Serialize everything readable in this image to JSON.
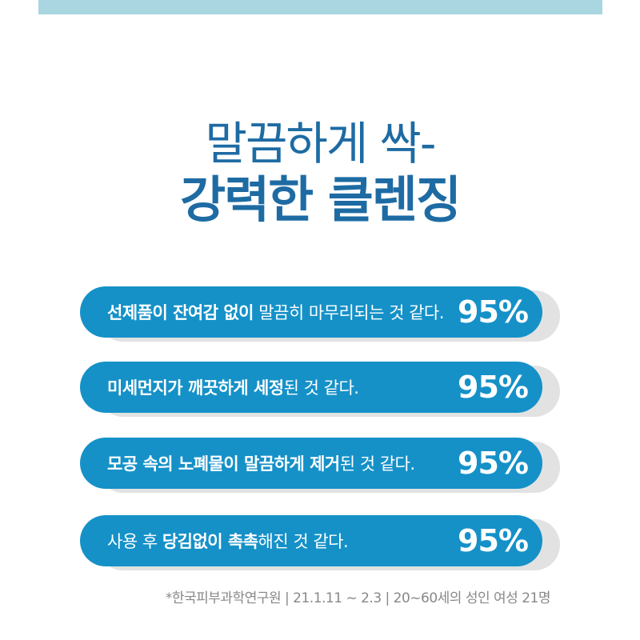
{
  "page": {
    "background_color": "#ffffff",
    "top_band_color": "#a9d6e0"
  },
  "title": {
    "line1": "말끔하게 싹-",
    "line2": "강력한 클렌징",
    "color": "#1e6ba3"
  },
  "survey": {
    "bar_color": "#1591c8",
    "shadow_color": "#e2e2e2",
    "text_color": "#ffffff",
    "items": [
      {
        "prefix": "",
        "bold": "선제품이 잔여감 없이",
        "rest": " 말끔히 마무리되는 것 같다.",
        "value": "95%"
      },
      {
        "prefix": "",
        "bold": "미세먼지가 깨끗하게 세정",
        "rest": "된 것 같다.",
        "value": "95%"
      },
      {
        "prefix": "",
        "bold": "모공 속의 노폐물이 말끔하게 제거",
        "rest": "된 것 같다.",
        "value": "95%"
      },
      {
        "prefix": "사용 후 ",
        "bold": "당김없이 촉촉",
        "rest": "해진 것 같다.",
        "value": "95%"
      }
    ]
  },
  "footnote": {
    "text": "*한국피부과학연구원 | 21.1.11 ~ 2.3 | 20~60세의 성인 여성 21명",
    "color": "#888888"
  },
  "chart_data": {
    "type": "bar",
    "orientation": "horizontal",
    "title": "말끔하게 싹- 강력한 클렌징",
    "categories": [
      "선제품이 잔여감 없이 말끔히 마무리되는 것 같다.",
      "미세먼지가 깨끗하게 세정된 것 같다.",
      "모공 속의 노폐물이 말끔하게 제거된 것 같다.",
      "사용 후 당김없이 촉촉해진 것 같다."
    ],
    "values": [
      95,
      95,
      95,
      95
    ],
    "unit": "%",
    "xlabel": "",
    "ylabel": "",
    "legend": [],
    "grid": false,
    "annotations": [
      "95%",
      "95%",
      "95%",
      "95%"
    ],
    "source_note": "*한국피부과학연구원 | 21.1.11 ~ 2.3 | 20~60세의 성인 여성 21명"
  }
}
